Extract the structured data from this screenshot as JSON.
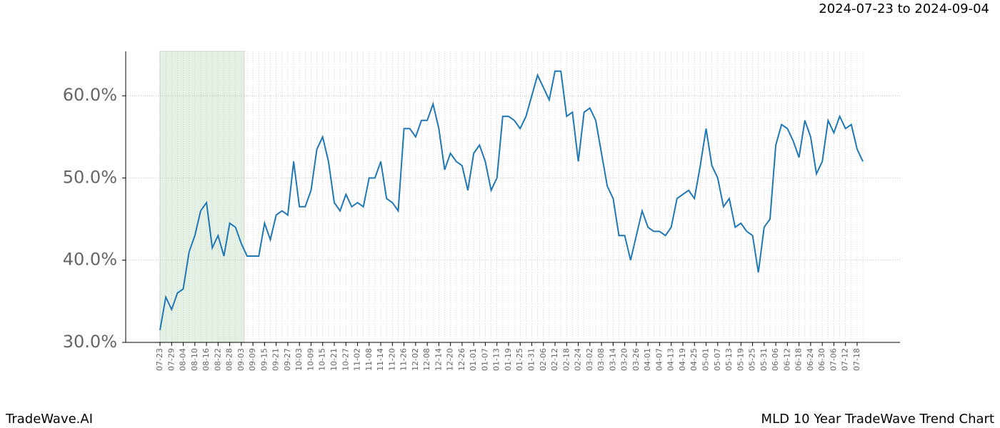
{
  "chart_data": {
    "type": "line",
    "annotation": "2024-07-23 to 2024-09-04",
    "footer_left": "TradeWave.AI",
    "footer_right": "MLD 10 Year TradeWave Trend Chart",
    "categories": [
      "07-23",
      null,
      "07-29",
      null,
      "08-04",
      null,
      "08-10",
      null,
      "08-16",
      null,
      "08-22",
      null,
      "08-28",
      null,
      "09-03",
      null,
      "09-09",
      null,
      "09-15",
      null,
      "09-21",
      null,
      "09-27",
      null,
      "10-03",
      null,
      "10-09",
      null,
      "10-15",
      null,
      "10-21",
      null,
      "10-27",
      null,
      "11-02",
      null,
      "11-08",
      null,
      "11-14",
      null,
      "11-20",
      null,
      "11-26",
      null,
      "12-02",
      null,
      "12-08",
      null,
      "12-14",
      null,
      "12-20",
      null,
      "12-26",
      null,
      "01-01",
      null,
      "01-07",
      null,
      "01-13",
      null,
      "01-19",
      null,
      "01-25",
      null,
      "01-31",
      null,
      "02-06",
      null,
      "02-12",
      null,
      "02-18",
      null,
      "02-24",
      null,
      "03-02",
      null,
      "03-08",
      null,
      "03-14",
      null,
      "03-20",
      null,
      "03-26",
      null,
      "04-01",
      null,
      "04-07",
      null,
      "04-13",
      null,
      "04-19",
      null,
      "04-25",
      null,
      "05-01",
      null,
      "05-07",
      null,
      "05-13",
      null,
      "05-19",
      null,
      "05-25",
      null,
      "05-31",
      null,
      "06-06",
      null,
      "06-12",
      null,
      "06-18",
      null,
      "06-24",
      null,
      "06-30",
      null,
      "07-06",
      null,
      "07-12",
      null,
      "07-18",
      null
    ],
    "values": [
      31.5,
      35.5,
      34,
      36,
      36.5,
      41,
      43,
      46,
      47,
      41.5,
      43,
      40.5,
      44.5,
      44,
      42,
      40.5,
      40.5,
      40.5,
      44.5,
      42.5,
      45.5,
      46,
      45.5,
      52,
      46.5,
      46.5,
      48.5,
      53.5,
      55,
      52,
      47,
      46,
      48,
      46.5,
      47,
      46.5,
      50,
      50,
      52,
      47.5,
      47,
      46,
      56,
      56,
      55,
      57,
      57,
      59,
      56,
      51,
      53,
      52,
      51.5,
      48.5,
      53,
      54,
      52,
      48.5,
      50,
      57.5,
      57.5,
      57,
      56,
      57.5,
      60,
      62.5,
      61,
      59.5,
      63,
      63,
      57.5,
      58,
      52,
      58,
      58.5,
      57,
      53,
      49,
      47.5,
      43,
      43,
      40,
      43,
      46,
      44,
      43.5,
      43.5,
      43,
      44,
      47.5,
      48,
      48.5,
      47.5,
      51.5,
      56,
      51.5,
      50,
      46.5,
      47.5,
      44,
      44.5,
      43.5,
      43,
      38.5,
      44,
      45,
      54,
      56.5,
      56,
      54.5,
      52.5,
      57,
      55,
      50.5,
      52,
      57,
      55.5,
      57.5,
      56,
      56.5,
      53.5,
      52
    ],
    "color": "#1f77b4",
    "highlight": {
      "start": "07-23",
      "end": "09-03",
      "color": "#e5f0e5"
    },
    "ylim": [
      30,
      65.4
    ],
    "yticks": [
      {
        "value": 30,
        "label": "30.0%"
      },
      {
        "value": 40,
        "label": "40.0%"
      },
      {
        "value": 50,
        "label": "50.0%"
      },
      {
        "value": 60,
        "label": "60.0%"
      }
    ],
    "grid": true
  }
}
